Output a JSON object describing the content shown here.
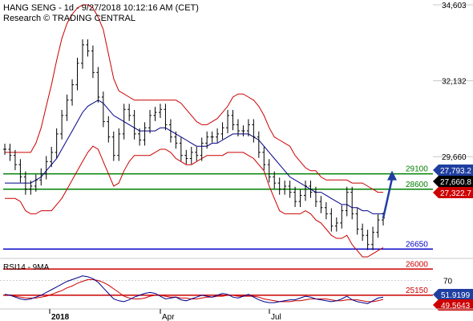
{
  "header": {
    "line1": "HANG SENG - 1d - 9/27/2018 10:12:16 AM (CET)",
    "line2": "Research © TRADING CENTRAL"
  },
  "chart_data": {
    "type": "line",
    "y_ticks": [
      "34,603",
      "32,132",
      "29,660"
    ],
    "ylim": [
      26400,
      34603
    ],
    "x_labels": [
      "2018",
      "Apr",
      "Jul"
    ],
    "levels": [
      {
        "label": "29100",
        "value": 29100,
        "color": "#008000"
      },
      {
        "label": "28600",
        "value": 28600,
        "color": "#008000"
      },
      {
        "label": "26650",
        "value": 26650,
        "color": "#0000c8"
      },
      {
        "label": "26000",
        "value": 26000,
        "color": "#cc0000"
      },
      {
        "label": "25150",
        "value": 25150,
        "color": "#cc0000"
      }
    ],
    "price_tags": [
      {
        "label": "27,793.2",
        "value": 27793,
        "bg": "#1f3fa0",
        "color": "#ffffff"
      },
      {
        "label": "27,660.8",
        "value": 27661,
        "bg": "#000000",
        "color": "#ffffff"
      },
      {
        "label": "27,322.7",
        "value": 27323,
        "bg": "#cc0000",
        "color": "#ffffff"
      }
    ],
    "price_series": {
      "name": "Hang Seng",
      "color": "#000000",
      "values": [
        29900,
        29700,
        29400,
        29000,
        28600,
        28700,
        28900,
        29100,
        29500,
        29800,
        30400,
        31000,
        31500,
        32000,
        32700,
        33300,
        33100,
        32400,
        31600,
        30800,
        30300,
        29700,
        30400,
        31200,
        31000,
        30400,
        30200,
        30600,
        31000,
        31100,
        31200,
        30700,
        30300,
        30100,
        29700,
        29600,
        29800,
        29700,
        30100,
        30300,
        30300,
        30400,
        30600,
        31000,
        30700,
        30500,
        30500,
        30700,
        30300,
        29800,
        29400,
        29000,
        28800,
        28600,
        28700,
        28500,
        28200,
        28400,
        28700,
        28500,
        28200,
        28000,
        27800,
        27400,
        27500,
        27900,
        28500,
        27800,
        27300,
        27100,
        26800,
        27200,
        27600,
        27660
      ]
    },
    "moving_average": {
      "color": "#00008b",
      "values": [
        28800,
        28800,
        28800,
        28800,
        28800,
        28800,
        28900,
        29000,
        29200,
        29400,
        29600,
        29900,
        30200,
        30500,
        30800,
        31100,
        31300,
        31400,
        31500,
        31400,
        31200,
        31000,
        30900,
        30800,
        30700,
        30600,
        30500,
        30500,
        30500,
        30500,
        30600,
        30600,
        30500,
        30400,
        30300,
        30200,
        30100,
        30000,
        30000,
        30000,
        30100,
        30100,
        30200,
        30300,
        30400,
        30400,
        30400,
        30400,
        30300,
        30200,
        30000,
        29800,
        29600,
        29400,
        29200,
        29000,
        28900,
        28800,
        28700,
        28600,
        28500,
        28500,
        28400,
        28300,
        28200,
        28100,
        28100,
        28000,
        28000,
        27900,
        27900,
        27800,
        27800,
        27800
      ]
    },
    "bollinger_upper": {
      "color": "#cc0000",
      "values": [
        29800,
        29800,
        29800,
        29800,
        29800,
        29800,
        30100,
        30600,
        31300,
        32000,
        32800,
        33500,
        34000,
        34300,
        34500,
        34600,
        34600,
        34500,
        34200,
        33800,
        33000,
        32200,
        31800,
        31700,
        31600,
        31500,
        31500,
        31500,
        31500,
        31500,
        31500,
        31500,
        31500,
        31500,
        31400,
        31200,
        31000,
        30800,
        30700,
        30700,
        30800,
        30900,
        31100,
        31300,
        31600,
        31700,
        31700,
        31600,
        31500,
        31300,
        31000,
        30600,
        30300,
        30200,
        30100,
        30000,
        29700,
        29500,
        29300,
        29200,
        29200,
        29000,
        28900,
        28900,
        28900,
        28900,
        28900,
        28800,
        28800,
        28800,
        28700,
        28600,
        28500,
        28500
      ]
    },
    "bollinger_lower": {
      "color": "#cc0000",
      "values": [
        28300,
        28300,
        28300,
        28200,
        27900,
        27800,
        27800,
        27900,
        27900,
        27900,
        28100,
        28300,
        28600,
        28900,
        29200,
        29500,
        29800,
        30000,
        29900,
        29500,
        29100,
        28700,
        28800,
        29200,
        29500,
        29700,
        29700,
        29700,
        29700,
        29800,
        29900,
        29900,
        29800,
        29600,
        29500,
        29400,
        29400,
        29500,
        29600,
        29700,
        29700,
        29700,
        29700,
        29800,
        29800,
        29800,
        29800,
        29700,
        29600,
        29400,
        29200,
        28700,
        28300,
        27900,
        27800,
        27800,
        27800,
        27800,
        27900,
        27800,
        27600,
        27500,
        27300,
        27100,
        27000,
        27000,
        27100,
        26800,
        26600,
        26400,
        26400,
        26500,
        26600,
        26700
      ]
    },
    "projection": {
      "from": 27660,
      "to": 29100,
      "color": "#1f3fa0"
    },
    "rsi": {
      "title": "RSI14 - 9MA",
      "ylim": [
        40,
        80
      ],
      "ticks": [
        "70"
      ],
      "tags": [
        {
          "label": "51.9199",
          "value": 51.92,
          "bg": "#1f3fa0",
          "color": "#ffffff"
        },
        {
          "label": "49.5643",
          "value": 49.56,
          "bg": "#cc0000",
          "color": "#ffffff"
        }
      ],
      "rsi_line": {
        "color": "#00008b",
        "values": [
          55,
          54,
          52,
          50,
          49,
          50,
          52,
          54,
          57,
          60,
          63,
          66,
          69,
          71,
          73,
          75,
          74,
          72,
          68,
          62,
          56,
          50,
          48,
          47,
          49,
          52,
          54,
          56,
          57,
          56,
          53,
          50,
          51,
          52,
          49,
          48,
          50,
          52,
          54,
          53,
          52,
          54,
          56,
          55,
          52,
          51,
          53,
          55,
          52,
          49,
          47,
          46,
          46,
          47,
          48,
          49,
          49,
          51,
          53,
          52,
          50,
          49,
          48,
          47,
          48,
          50,
          53,
          49,
          47,
          46,
          45,
          48,
          51,
          52
        ]
      },
      "ma_line": {
        "color": "#cc0000",
        "values": [
          54,
          54,
          53,
          52,
          51,
          51,
          51,
          52,
          53,
          55,
          57,
          59,
          62,
          64,
          67,
          69,
          71,
          71,
          70,
          68,
          65,
          61,
          57,
          53,
          51,
          50,
          50,
          51,
          53,
          54,
          54,
          53,
          52,
          52,
          51,
          51,
          50,
          50,
          51,
          52,
          52,
          53,
          53,
          54,
          54,
          53,
          53,
          53,
          53,
          52,
          50,
          49,
          48,
          47,
          47,
          47,
          48,
          48,
          49,
          50,
          50,
          50,
          50,
          49,
          48,
          48,
          49,
          49,
          49,
          48,
          47,
          47,
          48,
          49.5
        ]
      }
    }
  }
}
